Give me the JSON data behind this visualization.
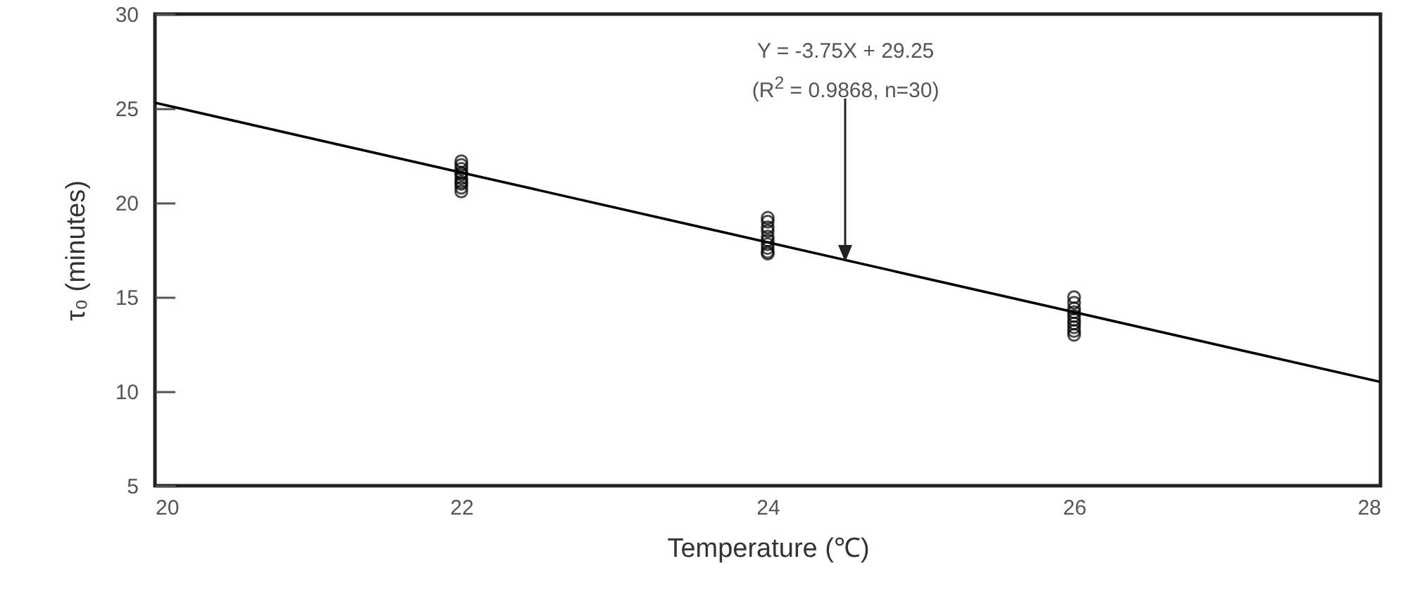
{
  "chart_data": {
    "type": "scatter",
    "xlabel": "Temperature (℃)",
    "ylabel": "τ₀ (minutes)",
    "xlim": [
      20,
      28
    ],
    "xticks": [
      20,
      22,
      24,
      26,
      28
    ],
    "ylim": [
      5,
      30
    ],
    "yticks": [
      5,
      10,
      15,
      20,
      25,
      30
    ],
    "series": [
      {
        "marker": "circle",
        "color": "#000000",
        "x": [
          22,
          22,
          22,
          22,
          22,
          22,
          22,
          22,
          22,
          22,
          24,
          24,
          24,
          24,
          24,
          24,
          24,
          24,
          24,
          24,
          26,
          26,
          26,
          26,
          26,
          26,
          26,
          26,
          26,
          26
        ],
        "values": [
          22.2,
          22.0,
          21.8,
          21.6,
          21.5,
          21.3,
          21.1,
          21.0,
          20.8,
          20.6,
          19.2,
          19.0,
          18.7,
          18.5,
          18.2,
          18.0,
          17.8,
          17.6,
          17.4,
          17.3,
          15.0,
          14.7,
          14.4,
          14.2,
          14.0,
          13.8,
          13.6,
          13.4,
          13.2,
          13.0
        ]
      },
      {
        "type": "line",
        "color": "#000000",
        "x": [
          20,
          28
        ],
        "values": [
          25.3,
          10.5
        ]
      }
    ],
    "annotations": [
      "Y = -3.75X + 29.25",
      "(R$^{2}$ = 0.9868, n=30)"
    ]
  }
}
